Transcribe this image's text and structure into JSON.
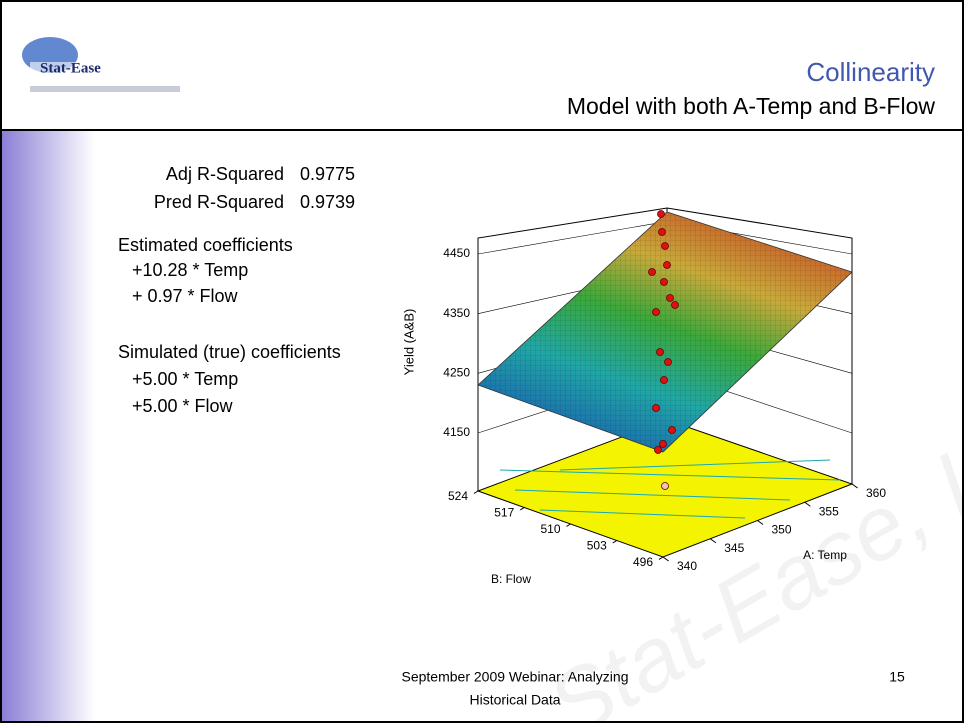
{
  "header": {
    "logo": "Stat-Ease",
    "title": "Collinearity",
    "subtitle": "Model with both A-Temp and B-Flow"
  },
  "stats": [
    {
      "label": "Adj R-Squared",
      "value": "0.9775"
    },
    {
      "label": "Pred R-Squared",
      "value": "0.9739"
    }
  ],
  "estimated": {
    "heading": "Estimated coefficients",
    "lines": [
      "+10.28 * Temp",
      "+ 0.97 * Flow"
    ]
  },
  "simulated": {
    "heading": "Simulated (true) coefficients",
    "lines": [
      "+5.00 * Temp",
      "+5.00 * Flow"
    ]
  },
  "plot": {
    "y_axis_label": "Yield (A&B)",
    "yticks": [
      4450,
      4350,
      4250,
      4150
    ],
    "b_axis_label": "B: Flow",
    "bticks": [
      524,
      517,
      510,
      503,
      496
    ],
    "a_axis_label": "A: Temp",
    "aticks": [
      340,
      345,
      350,
      355,
      360
    ]
  },
  "footer": {
    "lines": [
      "September 2009 Webinar: Analyzing",
      "Historical Data"
    ],
    "page": "15"
  },
  "watermark": "Stat-Ease, Inc."
}
